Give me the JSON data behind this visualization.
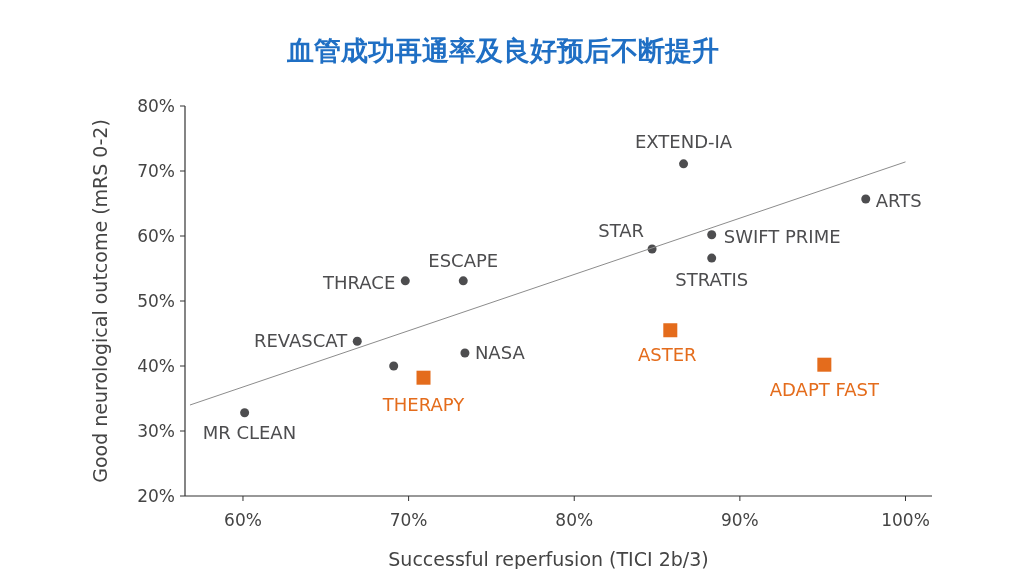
{
  "chart_data": {
    "type": "scatter",
    "title": "血管成功再通率及良好预后不断提升",
    "xlabel": "Successful reperfusion (TICI 2b/3)",
    "ylabel": "Good neurological outcome (mRS 0-2)",
    "series": [
      {
        "color": "#4d4d4f",
        "marker": "circle",
        "x": [
          60.1,
          66.9,
          69.1,
          69.8,
          73.3,
          73.4,
          84.7,
          86.6,
          88.3,
          88.3,
          97.6
        ],
        "values": [
          32.8,
          43.8,
          40.0,
          53.1,
          53.1,
          42.0,
          58.0,
          71.1,
          60.2,
          56.6,
          65.7
        ]
      },
      {
        "color": "#e46c1c",
        "marker": "square",
        "x": [
          70.9,
          85.8,
          95.1
        ],
        "values": [
          38.2,
          45.5,
          40.2
        ]
      },
      {
        "type": "line",
        "color": "#8c8c8c",
        "x": [
          56.8,
          100
        ],
        "values": [
          34.0,
          71.4
        ]
      }
    ],
    "annotations": [
      {
        "text": "MR CLEAN",
        "x": 60.1,
        "y": 32.8
      },
      {
        "text": "REVASCAT",
        "x": 66.9,
        "y": 43.8
      },
      {
        "text": "THRACE",
        "x": 69.8,
        "y": 53.1
      },
      {
        "text": "ESCAPE",
        "x": 73.3,
        "y": 53.1
      },
      {
        "text": "NASA",
        "x": 73.4,
        "y": 42.0
      },
      {
        "text": "STAR",
        "x": 84.7,
        "y": 58.0
      },
      {
        "text": "EXTEND-IA",
        "x": 86.6,
        "y": 71.1
      },
      {
        "text": "SWIFT PRIME",
        "x": 88.3,
        "y": 60.2
      },
      {
        "text": "STRATIS",
        "x": 88.3,
        "y": 56.6
      },
      {
        "text": "ARTS",
        "x": 97.6,
        "y": 65.7
      },
      {
        "text": "THERAPY",
        "x": 70.9,
        "y": 38.2
      },
      {
        "text": "ASTER",
        "x": 85.8,
        "y": 45.5
      },
      {
        "text": "ADAPT FAST",
        "x": 95.1,
        "y": 40.2
      }
    ],
    "xlim": [
      56.5,
      101.6
    ],
    "ylim": [
      20,
      80
    ],
    "xticks": [
      {
        "value": 60,
        "label": "60%"
      },
      {
        "value": 70,
        "label": "70%"
      },
      {
        "value": 80,
        "label": "80%"
      },
      {
        "value": 90,
        "label": "90%"
      },
      {
        "value": 100,
        "label": "100%"
      }
    ],
    "yticks": [
      {
        "value": 20,
        "label": "20%"
      },
      {
        "value": 30,
        "label": "30%"
      },
      {
        "value": 40,
        "label": "40%"
      },
      {
        "value": 50,
        "label": "50%"
      },
      {
        "value": 60,
        "label": "60%"
      },
      {
        "value": 70,
        "label": "70%"
      },
      {
        "value": 80,
        "label": "80%"
      }
    ],
    "grid": false
  }
}
